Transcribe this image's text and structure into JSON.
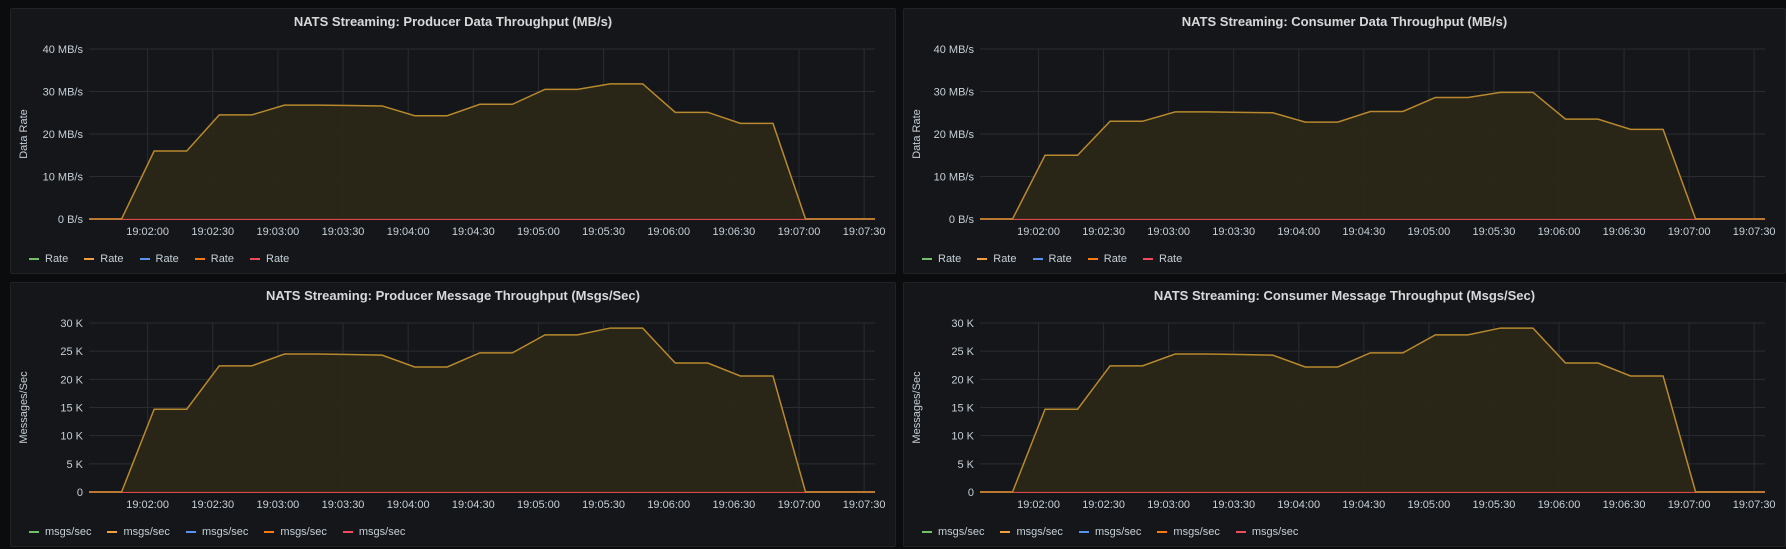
{
  "colors": {
    "series": [
      "#73bf69",
      "#f2a03d",
      "#5794f2",
      "#ff780a",
      "#f2495c"
    ],
    "area_line": "#b8892e",
    "area_fill": "#2b2717",
    "grid": "#2a2c30",
    "tick_text": "#c7d0d9"
  },
  "chart_data": [
    {
      "type": "area",
      "title": "NATS Streaming: Producer Data Throughput (MB/s)",
      "ylabel": "Data Rate",
      "xlabel": "",
      "x_ticks": [
        "19:02:00",
        "19:02:30",
        "19:03:00",
        "19:03:30",
        "19:04:00",
        "19:04:30",
        "19:05:00",
        "19:05:30",
        "19:06:00",
        "19:06:30",
        "19:07:00",
        "19:07:30"
      ],
      "y_ticks": [
        "0 B/s",
        "10 MB/s",
        "20 MB/s",
        "30 MB/s",
        "40 MB/s"
      ],
      "ylim": [
        0,
        40
      ],
      "xlim": [
        "19:01:33",
        "19:07:35"
      ],
      "grid": true,
      "legend": [
        "Rate",
        "Rate",
        "Rate",
        "Rate",
        "Rate"
      ],
      "legend_position": "bottom-left",
      "series": [
        {
          "x": [
            "19:01:33",
            "19:01:48",
            "19:02:03",
            "19:02:18",
            "19:02:33",
            "19:02:48",
            "19:03:03",
            "19:03:18",
            "19:03:33",
            "19:03:48",
            "19:04:03",
            "19:04:18",
            "19:04:33",
            "19:04:48",
            "19:05:03",
            "19:05:18",
            "19:05:33",
            "19:05:48",
            "19:06:03",
            "19:06:18",
            "19:06:33",
            "19:06:48",
            "19:07:03",
            "19:07:18",
            "19:07:35"
          ],
          "values": [
            0,
            0,
            16,
            16,
            24.5,
            24.5,
            26.8,
            26.8,
            26.7,
            26.6,
            24.3,
            24.3,
            27,
            27,
            30.5,
            30.5,
            31.8,
            31.8,
            25.1,
            25.1,
            22.5,
            22.5,
            0,
            0,
            0
          ]
        }
      ]
    },
    {
      "type": "area",
      "title": "NATS Streaming: Consumer Data Throughput (MB/s)",
      "ylabel": "Data Rate",
      "xlabel": "",
      "x_ticks": [
        "19:02:00",
        "19:02:30",
        "19:03:00",
        "19:03:30",
        "19:04:00",
        "19:04:30",
        "19:05:00",
        "19:05:30",
        "19:06:00",
        "19:06:30",
        "19:07:00",
        "19:07:30"
      ],
      "y_ticks": [
        "0 B/s",
        "10 MB/s",
        "20 MB/s",
        "30 MB/s",
        "40 MB/s"
      ],
      "ylim": [
        0,
        40
      ],
      "xlim": [
        "19:01:33",
        "19:07:35"
      ],
      "grid": true,
      "legend": [
        "Rate",
        "Rate",
        "Rate",
        "Rate",
        "Rate"
      ],
      "legend_position": "bottom-left",
      "series": [
        {
          "x": [
            "19:01:33",
            "19:01:48",
            "19:02:03",
            "19:02:18",
            "19:02:33",
            "19:02:48",
            "19:03:03",
            "19:03:18",
            "19:03:33",
            "19:03:48",
            "19:04:03",
            "19:04:18",
            "19:04:33",
            "19:04:48",
            "19:05:03",
            "19:05:18",
            "19:05:33",
            "19:05:48",
            "19:06:03",
            "19:06:18",
            "19:06:33",
            "19:06:48",
            "19:07:03",
            "19:07:18",
            "19:07:35"
          ],
          "values": [
            0,
            0,
            15,
            15,
            23,
            23,
            25.2,
            25.2,
            25.1,
            25,
            22.8,
            22.8,
            25.3,
            25.3,
            28.6,
            28.6,
            29.8,
            29.8,
            23.5,
            23.5,
            21.1,
            21.1,
            0,
            0,
            0
          ]
        }
      ]
    },
    {
      "type": "area",
      "title": "NATS Streaming: Producer Message Throughput (Msgs/Sec)",
      "ylabel": "Messages/Sec",
      "xlabel": "",
      "x_ticks": [
        "19:02:00",
        "19:02:30",
        "19:03:00",
        "19:03:30",
        "19:04:00",
        "19:04:30",
        "19:05:00",
        "19:05:30",
        "19:06:00",
        "19:06:30",
        "19:07:00",
        "19:07:30"
      ],
      "y_ticks": [
        "0",
        "5 K",
        "10 K",
        "15 K",
        "20 K",
        "25 K",
        "30 K"
      ],
      "ylim": [
        0,
        30000
      ],
      "xlim": [
        "19:01:33",
        "19:07:35"
      ],
      "grid": true,
      "legend": [
        "msgs/sec",
        "msgs/sec",
        "msgs/sec",
        "msgs/sec",
        "msgs/sec"
      ],
      "legend_position": "bottom-left",
      "series": [
        {
          "x": [
            "19:01:33",
            "19:01:48",
            "19:02:03",
            "19:02:18",
            "19:02:33",
            "19:02:48",
            "19:03:03",
            "19:03:18",
            "19:03:33",
            "19:03:48",
            "19:04:03",
            "19:04:18",
            "19:04:33",
            "19:04:48",
            "19:05:03",
            "19:05:18",
            "19:05:33",
            "19:05:48",
            "19:06:03",
            "19:06:18",
            "19:06:33",
            "19:06:48",
            "19:07:03",
            "19:07:18",
            "19:07:35"
          ],
          "values": [
            0,
            0,
            14700,
            14700,
            22400,
            22400,
            24500,
            24500,
            24400,
            24300,
            22200,
            22200,
            24700,
            24700,
            27900,
            27900,
            29100,
            29100,
            22900,
            22900,
            20600,
            20600,
            0,
            0,
            0
          ]
        }
      ]
    },
    {
      "type": "area",
      "title": "NATS Streaming: Consumer Message Throughput (Msgs/Sec)",
      "ylabel": "Messages/Sec",
      "xlabel": "",
      "x_ticks": [
        "19:02:00",
        "19:02:30",
        "19:03:00",
        "19:03:30",
        "19:04:00",
        "19:04:30",
        "19:05:00",
        "19:05:30",
        "19:06:00",
        "19:06:30",
        "19:07:00",
        "19:07:30"
      ],
      "y_ticks": [
        "0",
        "5 K",
        "10 K",
        "15 K",
        "20 K",
        "25 K",
        "30 K"
      ],
      "ylim": [
        0,
        30000
      ],
      "xlim": [
        "19:01:33",
        "19:07:35"
      ],
      "grid": true,
      "legend": [
        "msgs/sec",
        "msgs/sec",
        "msgs/sec",
        "msgs/sec",
        "msgs/sec"
      ],
      "legend_position": "bottom-left",
      "series": [
        {
          "x": [
            "19:01:33",
            "19:01:48",
            "19:02:03",
            "19:02:18",
            "19:02:33",
            "19:02:48",
            "19:03:03",
            "19:03:18",
            "19:03:33",
            "19:03:48",
            "19:04:03",
            "19:04:18",
            "19:04:33",
            "19:04:48",
            "19:05:03",
            "19:05:18",
            "19:05:33",
            "19:05:48",
            "19:06:03",
            "19:06:18",
            "19:06:33",
            "19:06:48",
            "19:07:03",
            "19:07:18",
            "19:07:35"
          ],
          "values": [
            0,
            0,
            14700,
            14700,
            22400,
            22400,
            24500,
            24500,
            24400,
            24300,
            22200,
            22200,
            24700,
            24700,
            27900,
            27900,
            29100,
            29100,
            22900,
            22900,
            20600,
            20600,
            0,
            0,
            0
          ]
        }
      ]
    }
  ]
}
